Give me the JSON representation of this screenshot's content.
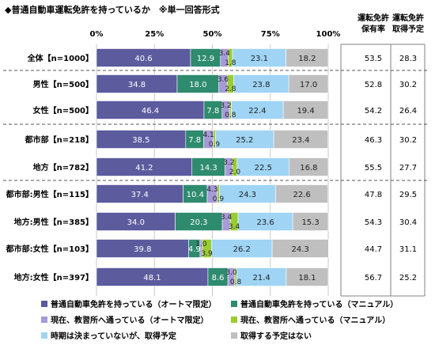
{
  "title": "◆普通自動車運転免許を持っているか　※単一回答形式",
  "chart_data": {
    "type": "bar",
    "orientation": "horizontal",
    "stacked": true,
    "percent_stacked": true,
    "xlim": [
      0,
      100
    ],
    "x_ticks": [
      "0%",
      "25%",
      "50%",
      "75%",
      "100%"
    ],
    "grid": true,
    "legend_position": "bottom",
    "categories": [
      "全体【n=1000】",
      "男性【n=500】",
      "女性【n=500】",
      "都市部【n=218】",
      "地方【n=782】",
      "都市部:男性【n=115】",
      "地方:男性【n=385】",
      "都市部:女性【n=103】",
      "地方:女性【n=397】"
    ],
    "series": [
      {
        "name": "普通自動車免許を持っている（オートマ限定）",
        "color": "#5b5b9e",
        "values": [
          40.6,
          34.8,
          46.4,
          38.5,
          41.2,
          37.4,
          34.0,
          39.8,
          48.1
        ]
      },
      {
        "name": "普通自動車免許を持っている（マニュアル）",
        "color": "#2e8b6e",
        "values": [
          12.9,
          18.0,
          7.8,
          7.8,
          14.3,
          10.4,
          20.3,
          4.9,
          8.6
        ]
      },
      {
        "name": "現在、教習所へ通っている（オートマ限定）",
        "color": "#a79ad8",
        "values": [
          3.4,
          3.6,
          3.2,
          4.1,
          3.2,
          4.3,
          3.4,
          1.0,
          3.0
        ]
      },
      {
        "name": "現在、教習所へ通っている（マニュアル）",
        "color": "#9acd32",
        "values": [
          1.8,
          2.8,
          0.8,
          0.9,
          2.0,
          0.9,
          3.4,
          3.9,
          0.8
        ]
      },
      {
        "name": "時期は決まっていないが、取得予定",
        "color": "#9fd4f5",
        "values": [
          23.1,
          23.8,
          22.4,
          25.2,
          22.5,
          24.3,
          23.6,
          26.2,
          21.4
        ]
      },
      {
        "name": "取得する予定はない",
        "color": "#bfbfbf",
        "values": [
          18.2,
          17.0,
          19.4,
          23.4,
          16.8,
          22.6,
          15.3,
          24.3,
          18.1
        ]
      }
    ],
    "side_columns": [
      {
        "header": [
          "運転免許",
          "保有率"
        ],
        "values": [
          "53.5",
          "52.8",
          "54.2",
          "46.3",
          "55.5",
          "47.8",
          "54.3",
          "44.7",
          "56.7"
        ]
      },
      {
        "header": [
          "運転免許",
          "取得予定"
        ],
        "values": [
          "28.3",
          "30.2",
          "26.4",
          "30.2",
          "27.7",
          "29.5",
          "30.4",
          "31.1",
          "25.2"
        ]
      }
    ]
  }
}
